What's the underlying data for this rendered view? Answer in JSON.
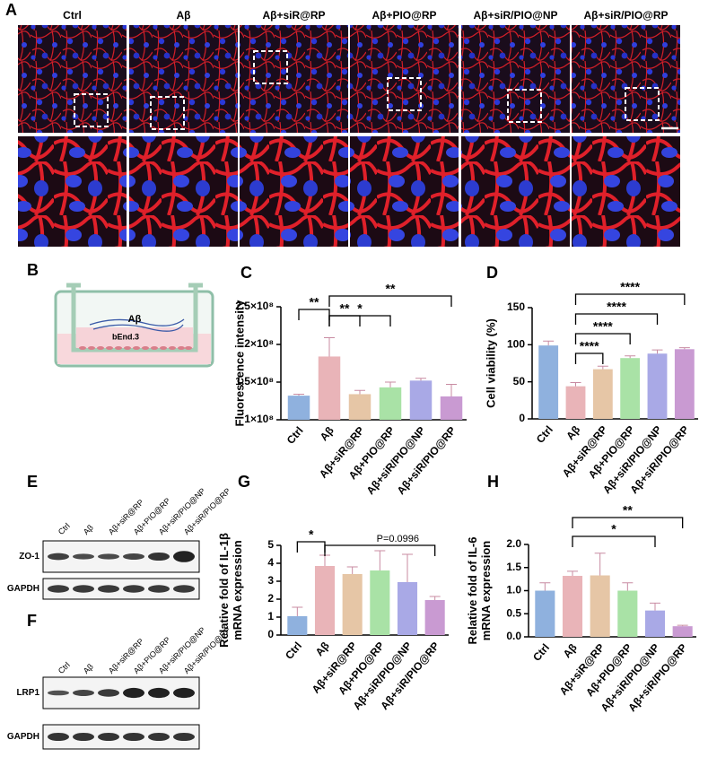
{
  "panel_a": {
    "label": "A",
    "columns": [
      "Ctrl",
      "Aβ",
      "Aβ+siR@RP",
      "Aβ+PIO@RP",
      "Aβ+siR/PIO@NP",
      "Aβ+siR/PIO@RP"
    ]
  },
  "panel_b": {
    "label": "B",
    "labels": [
      "Aβ",
      "bEnd.3"
    ]
  },
  "panel_e": {
    "label": "E",
    "lanes": [
      "Ctrl",
      "Aβ",
      "Aβ+siR@RP",
      "Aβ+PIO@RP",
      "Aβ+siR/PIO@NP",
      "Aβ+siR/PIO@RP"
    ],
    "rows": [
      "ZO-1",
      "GAPDH"
    ]
  },
  "panel_f": {
    "label": "F",
    "lanes": [
      "Ctrl",
      "Aβ",
      "Aβ+siR@RP",
      "Aβ+PIO@RP",
      "Aβ+siR/PIO@NP",
      "Aβ+siR/PIO@RP"
    ],
    "rows": [
      "LRP1",
      "GAPDH"
    ]
  },
  "chart_data": [
    {
      "type": "bar",
      "panel": "C",
      "ylabel": [
        "Fluorescence intensity"
      ],
      "categories": [
        "Ctrl",
        "Aβ",
        "Aβ+siR@RP",
        "Aβ+PIO@RP",
        "Aβ+siR/PIO@NP",
        "Aβ+siR/PIO@RP"
      ],
      "values": [
        132000000,
        184000000,
        134000000,
        143000000,
        152000000,
        131000000
      ],
      "errors": [
        2000000,
        25000000,
        5000000,
        7000000,
        3000000,
        16000000
      ],
      "colors": [
        "#8fb1de",
        "#e9b4b8",
        "#e6c6a6",
        "#a9e2a6",
        "#a9a9e6",
        "#c99ad2"
      ],
      "ylim": [
        100000000,
        250000000
      ],
      "yticks": [
        {
          "value": 100000000,
          "label": "1×10⁸"
        },
        {
          "value": 150000000,
          "label": "1.5×10⁸"
        },
        {
          "value": 200000000,
          "label": "2×10⁸"
        },
        {
          "value": 250000000,
          "label": "2.5×10⁸"
        }
      ],
      "annotations": [
        "**",
        "**",
        "*",
        "**"
      ]
    },
    {
      "type": "bar",
      "panel": "D",
      "ylabel": [
        "Cell viability (%)"
      ],
      "categories": [
        "Ctrl",
        "Aβ",
        "Aβ+siR@RP",
        "Aβ+PIO@RP",
        "Aβ+siR/PIO@NP",
        "Aβ+siR/PIO@RP"
      ],
      "values": [
        99,
        44,
        67,
        82,
        88,
        94
      ],
      "errors": [
        6,
        5,
        4,
        3,
        5,
        2
      ],
      "colors": [
        "#8fb1de",
        "#e9b4b8",
        "#e6c6a6",
        "#a9e2a6",
        "#a9a9e6",
        "#c99ad2"
      ],
      "ylim": [
        0,
        150
      ],
      "yticks": [
        0,
        50,
        100,
        150
      ],
      "annotations": [
        "****",
        "****",
        "****",
        "****"
      ]
    },
    {
      "type": "bar",
      "panel": "G",
      "ylabel": [
        "Relative fold of IL-1β",
        "mRNA expression"
      ],
      "categories": [
        "Ctrl",
        "Aβ",
        "Aβ+siR@RP",
        "Aβ+PIO@RP",
        "Aβ+siR/PIO@NP",
        "Aβ+siR/PIO@RP"
      ],
      "values": [
        1.05,
        3.85,
        3.4,
        3.6,
        2.95,
        1.95
      ],
      "errors": [
        0.5,
        0.6,
        0.4,
        1.1,
        1.55,
        0.2
      ],
      "colors": [
        "#8fb1de",
        "#e9b4b8",
        "#e6c6a6",
        "#a9e2a6",
        "#a9a9e6",
        "#c99ad2"
      ],
      "ylim": [
        0,
        5
      ],
      "yticks": [
        0,
        1,
        2,
        3,
        4,
        5
      ],
      "annotations": [
        "*",
        "P=0.0996"
      ]
    },
    {
      "type": "bar",
      "panel": "H",
      "ylabel": [
        "Relative fold of IL-6",
        "mRNA expression"
      ],
      "categories": [
        "Ctrl",
        "Aβ",
        "Aβ+siR@RP",
        "Aβ+PIO@RP",
        "Aβ+siR/PIO@NP",
        "Aβ+siR/PIO@RP"
      ],
      "values": [
        1.0,
        1.32,
        1.33,
        1.0,
        0.57,
        0.23
      ],
      "errors": [
        0.17,
        0.1,
        0.48,
        0.17,
        0.16,
        0.02
      ],
      "colors": [
        "#8fb1de",
        "#e9b4b8",
        "#e6c6a6",
        "#a9e2a6",
        "#a9a9e6",
        "#c99ad2"
      ],
      "ylim": [
        0,
        2
      ],
      "yticks": [
        {
          "value": 0,
          "label": "0.0"
        },
        {
          "value": 0.5,
          "label": "0.5"
        },
        {
          "value": 1,
          "label": "1.0"
        },
        {
          "value": 1.5,
          "label": "1.5"
        },
        {
          "value": 2,
          "label": "2.0"
        }
      ],
      "annotations": [
        "*",
        "**"
      ]
    }
  ]
}
